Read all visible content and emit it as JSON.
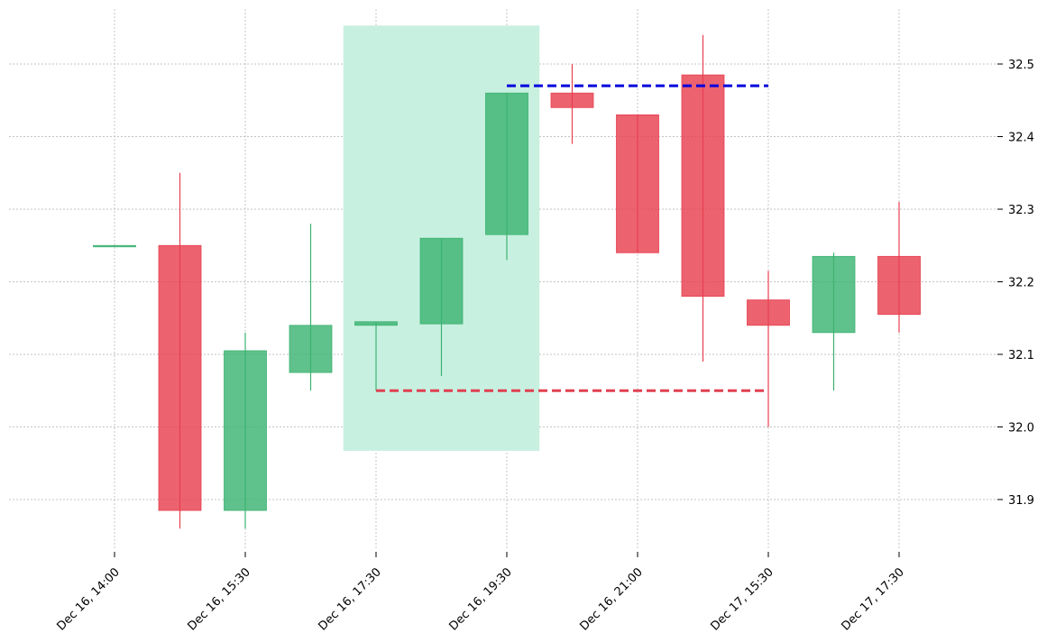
{
  "chart_data": {
    "type": "candlestick",
    "title": "",
    "xlabel": "",
    "ylabel": "",
    "ylim": [
      31.82,
      32.57
    ],
    "grid": true,
    "x_tick_labels": [
      "Dec 16, 14:00",
      "Dec 16, 15:30",
      "Dec 16, 17:30",
      "Dec 16, 19:30",
      "Dec 16, 21:00",
      "Dec 17, 15:30",
      "Dec 17, 17:30"
    ],
    "x_tick_indices": [
      0,
      2,
      4,
      6,
      8,
      10,
      12
    ],
    "y_ticks": [
      31.9,
      32.0,
      32.1,
      32.2,
      32.3,
      32.4,
      32.5
    ],
    "y_tick_labels": [
      "31.9",
      "32.0",
      "32.1",
      "32.2",
      "32.3",
      "32.4",
      "32.5"
    ],
    "candles": [
      {
        "open": 32.25,
        "high": 32.25,
        "low": 32.25,
        "close": 32.25
      },
      {
        "open": 32.25,
        "high": 32.35,
        "low": 31.86,
        "close": 31.885
      },
      {
        "open": 31.885,
        "high": 32.13,
        "low": 31.86,
        "close": 32.105
      },
      {
        "open": 32.075,
        "high": 32.28,
        "low": 32.05,
        "close": 32.14
      },
      {
        "open": 32.14,
        "high": 32.145,
        "low": 32.05,
        "close": 32.145
      },
      {
        "open": 32.142,
        "high": 32.26,
        "low": 32.07,
        "close": 32.26
      },
      {
        "open": 32.265,
        "high": 32.46,
        "low": 32.23,
        "close": 32.46
      },
      {
        "open": 32.46,
        "high": 32.5,
        "low": 32.39,
        "close": 32.44
      },
      {
        "open": 32.43,
        "high": 32.43,
        "low": 32.24,
        "close": 32.24
      },
      {
        "open": 32.485,
        "high": 32.54,
        "low": 32.09,
        "close": 32.18
      },
      {
        "open": 32.175,
        "high": 32.215,
        "low": 32.0,
        "close": 32.14
      },
      {
        "open": 32.13,
        "high": 32.24,
        "low": 32.05,
        "close": 32.235
      },
      {
        "open": 32.235,
        "high": 32.31,
        "low": 32.13,
        "close": 32.155
      }
    ],
    "highlight_zone": {
      "x_start": 3.5,
      "x_end": 6.5,
      "y_low": 31.967,
      "y_high": 32.553
    },
    "resistance_line": {
      "value": 32.47,
      "x_start": 6,
      "x_end": 10
    },
    "support_line": {
      "value": 32.05,
      "x_start": 4,
      "x_end": 10
    },
    "colors": {
      "up": "#3cb371",
      "down": "#e8404f",
      "highlight": "#c8f0e0",
      "resistance": "#0000dd",
      "support": "#e04050",
      "grid": "#b0b0b0"
    }
  }
}
